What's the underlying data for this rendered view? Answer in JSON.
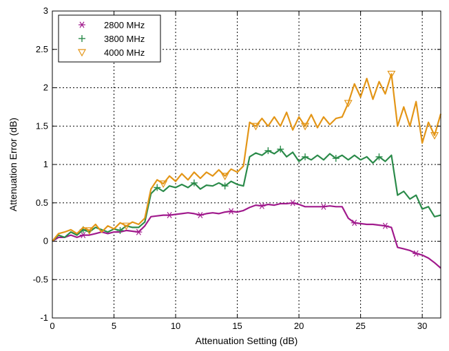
{
  "chart_data": {
    "type": "line",
    "title": "",
    "xlabel": "Attenuation Setting (dB)",
    "ylabel": "Attenuation Error (dB)",
    "xlim": [
      0,
      31.5
    ],
    "ylim": [
      -1,
      3
    ],
    "xticks": [
      0,
      5,
      10,
      15,
      20,
      25,
      30
    ],
    "yticks": [
      -1,
      -0.5,
      0,
      0.5,
      1,
      1.5,
      2,
      2.5,
      3
    ],
    "grid": true,
    "legend_position": "top-left",
    "x": [
      0,
      0.5,
      1,
      1.5,
      2,
      2.5,
      3,
      3.5,
      4,
      4.5,
      5,
      5.5,
      6,
      6.5,
      7,
      7.5,
      8,
      8.5,
      9,
      9.5,
      10,
      10.5,
      11,
      11.5,
      12,
      12.5,
      13,
      13.5,
      14,
      14.5,
      15,
      15.5,
      16,
      16.5,
      17,
      17.5,
      18,
      18.5,
      19,
      19.5,
      20,
      20.5,
      21,
      21.5,
      22,
      22.5,
      23,
      23.5,
      24,
      24.5,
      25,
      25.5,
      26,
      26.5,
      27,
      27.5,
      28,
      28.5,
      29,
      29.5,
      30,
      30.5,
      31,
      31.5
    ],
    "series": [
      {
        "name": "2800 MHz",
        "color": "#a0198c",
        "marker": "asterisk",
        "marker_x": [
          2.5,
          7,
          9.5,
          12,
          14.5,
          17,
          19.5,
          22,
          24.5,
          27,
          29.5
        ],
        "values": [
          0,
          0.05,
          0.05,
          0.08,
          0.05,
          0.08,
          0.08,
          0.1,
          0.12,
          0.1,
          0.12,
          0.12,
          0.14,
          0.13,
          0.12,
          0.2,
          0.32,
          0.33,
          0.34,
          0.34,
          0.35,
          0.36,
          0.37,
          0.36,
          0.34,
          0.36,
          0.37,
          0.36,
          0.38,
          0.39,
          0.38,
          0.4,
          0.44,
          0.47,
          0.46,
          0.48,
          0.47,
          0.49,
          0.49,
          0.5,
          0.48,
          0.45,
          0.45,
          0.45,
          0.45,
          0.46,
          0.45,
          0.45,
          0.3,
          0.24,
          0.23,
          0.22,
          0.22,
          0.21,
          0.2,
          0.18,
          -0.08,
          -0.1,
          -0.12,
          -0.16,
          -0.18,
          -0.22,
          -0.28,
          -0.35
        ]
      },
      {
        "name": "3800 MHz",
        "color": "#2a8a49",
        "marker": "plus",
        "marker_x": [
          2.5,
          5.5,
          8.5,
          11.5,
          14,
          17.5,
          18.5,
          20.5,
          23,
          26.5
        ],
        "values": [
          0,
          0.08,
          0.05,
          0.12,
          0.08,
          0.15,
          0.12,
          0.18,
          0.15,
          0.12,
          0.16,
          0.14,
          0.2,
          0.18,
          0.18,
          0.25,
          0.62,
          0.7,
          0.65,
          0.72,
          0.7,
          0.74,
          0.7,
          0.76,
          0.68,
          0.73,
          0.72,
          0.76,
          0.72,
          0.78,
          0.74,
          0.72,
          1.1,
          1.15,
          1.12,
          1.18,
          1.14,
          1.2,
          1.1,
          1.16,
          1.04,
          1.1,
          1.06,
          1.12,
          1.06,
          1.14,
          1.08,
          1.12,
          1.06,
          1.12,
          1.06,
          1.1,
          1.02,
          1.1,
          1.04,
          1.12,
          0.6,
          0.65,
          0.55,
          0.6,
          0.42,
          0.45,
          0.32,
          0.34
        ]
      },
      {
        "name": "4000 MHz",
        "color": "#e39516",
        "marker": "triangle-down",
        "marker_x": [
          3,
          6,
          9,
          14,
          16.5,
          20.5,
          24,
          27.5,
          31
        ],
        "values": [
          0,
          0.1,
          0.12,
          0.15,
          0.1,
          0.18,
          0.14,
          0.22,
          0.12,
          0.2,
          0.16,
          0.24,
          0.2,
          0.25,
          0.22,
          0.3,
          0.68,
          0.8,
          0.75,
          0.85,
          0.78,
          0.88,
          0.8,
          0.9,
          0.82,
          0.9,
          0.85,
          0.93,
          0.85,
          0.94,
          0.9,
          0.98,
          1.55,
          1.5,
          1.6,
          1.5,
          1.62,
          1.5,
          1.68,
          1.45,
          1.62,
          1.5,
          1.65,
          1.48,
          1.62,
          1.52,
          1.6,
          1.62,
          1.8,
          2.05,
          1.88,
          2.12,
          1.85,
          2.08,
          1.92,
          2.18,
          1.5,
          1.75,
          1.5,
          1.82,
          1.28,
          1.55,
          1.38,
          1.66
        ]
      }
    ]
  }
}
